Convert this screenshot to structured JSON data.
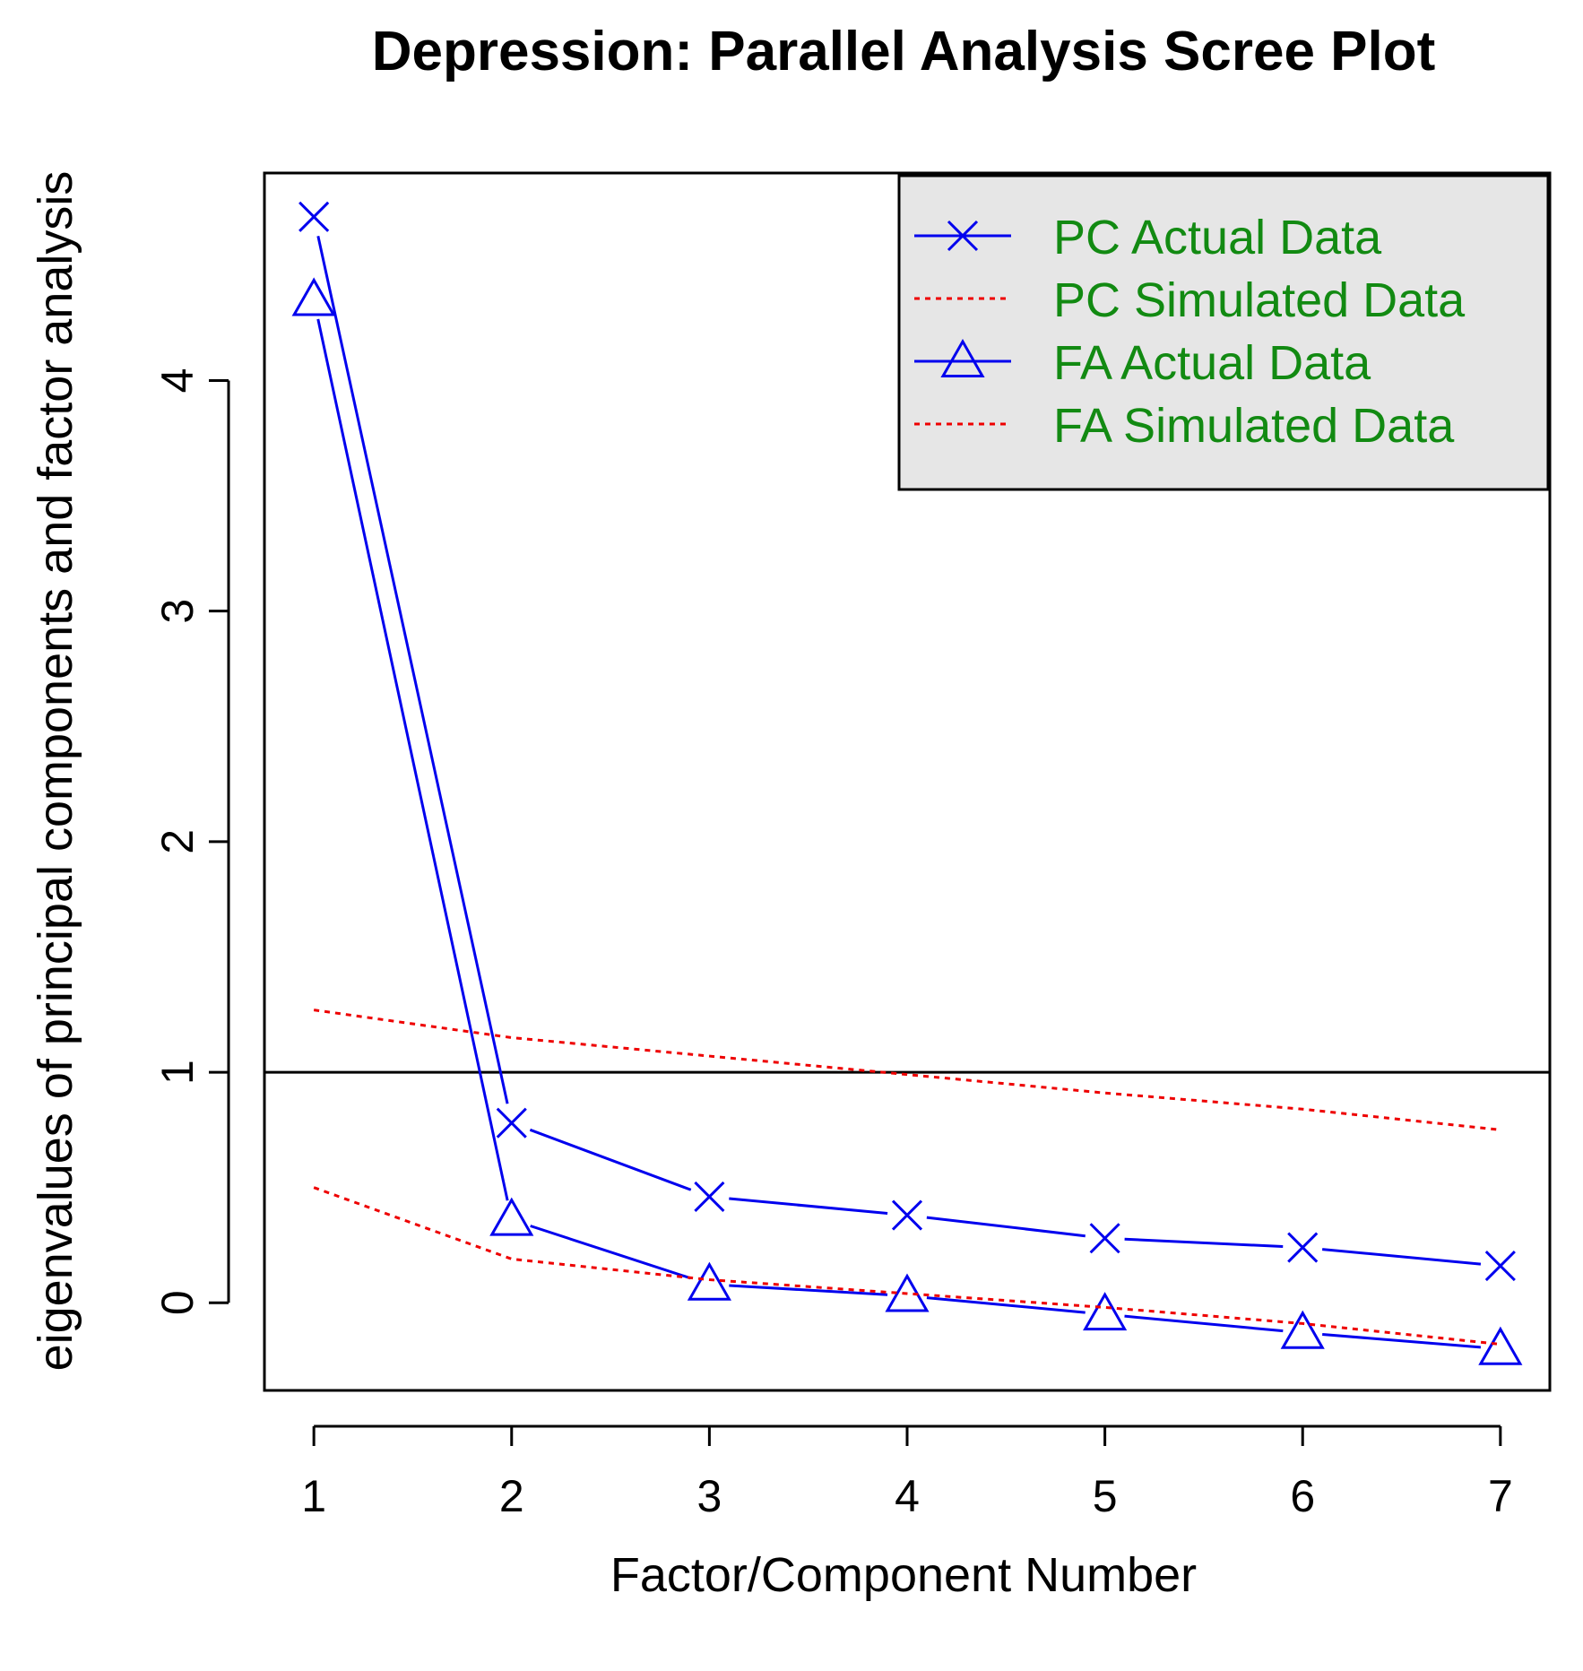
{
  "chart_data": {
    "type": "line",
    "title": "Depression: Parallel Analysis Scree Plot",
    "xlabel": "Factor/Component Number",
    "ylabel": "eigenvalues of principal components and factor analysis",
    "x": [
      1,
      2,
      3,
      4,
      5,
      6,
      7
    ],
    "xlim": [
      0.75,
      7.25
    ],
    "ylim": [
      -0.38,
      4.9
    ],
    "xticks": [
      "1",
      "2",
      "3",
      "4",
      "5",
      "6",
      "7"
    ],
    "yticks": [
      "0",
      "1",
      "2",
      "3",
      "4"
    ],
    "reference_line": 1,
    "series": [
      {
        "name": "PC  Actual Data",
        "legend_label": "PC  Actual Data",
        "values": [
          4.71,
          0.78,
          0.46,
          0.38,
          0.28,
          0.24,
          0.16
        ],
        "color": "#0000ee",
        "line": "solid",
        "marker": "x"
      },
      {
        "name": "PC  Simulated Data",
        "legend_label": " PC  Simulated Data",
        "values": [
          1.27,
          1.15,
          1.07,
          0.99,
          0.91,
          0.84,
          0.75
        ],
        "color": "#ee0000",
        "line": "dotted",
        "marker": "none"
      },
      {
        "name": "FA  Actual Data",
        "legend_label": "FA  Actual Data",
        "values": [
          4.35,
          0.36,
          0.08,
          0.03,
          -0.05,
          -0.13,
          -0.2
        ],
        "color": "#0000ee",
        "line": "solid",
        "marker": "triangle"
      },
      {
        "name": "FA  Simulated Data",
        "legend_label": " FA  Simulated Data",
        "values": [
          0.5,
          0.19,
          0.1,
          0.04,
          -0.02,
          -0.09,
          -0.18
        ],
        "color": "#ee0000",
        "line": "dotted",
        "marker": "none"
      }
    ],
    "legend": {
      "position": "top-right",
      "background": "#e6e6e6",
      "text_color": "#128a12"
    },
    "grid": false
  }
}
